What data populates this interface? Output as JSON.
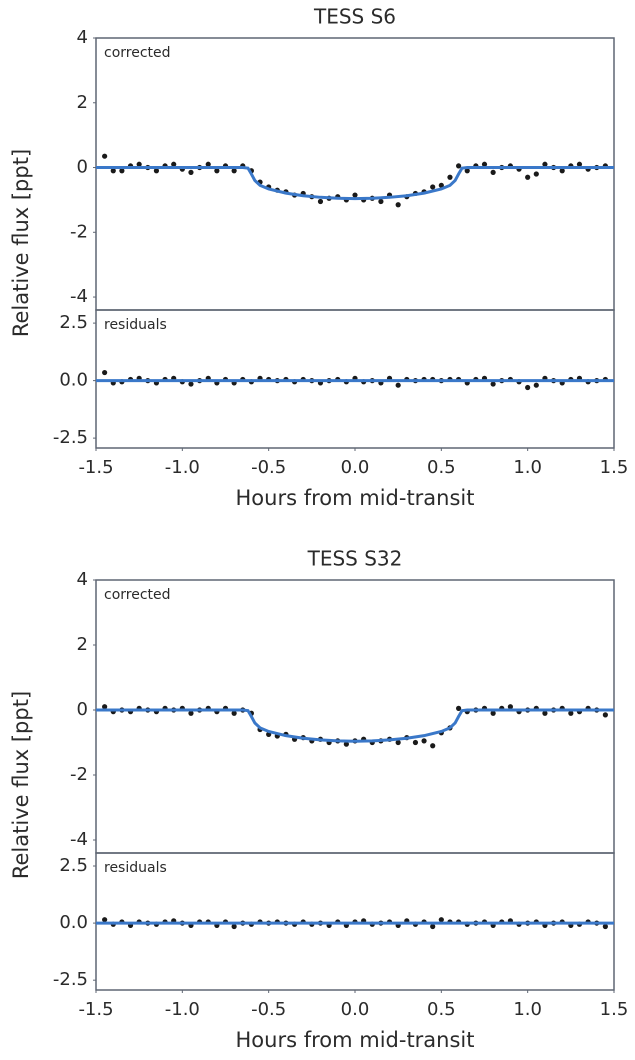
{
  "chart_data": [
    {
      "type": "line",
      "title": "TESS S6",
      "ylabel": "Relative flux [ppt]",
      "annotation": "corrected",
      "xlim": [
        -1.5,
        1.5
      ],
      "ylim": [
        -4.4,
        4.0
      ],
      "yticks": [
        4,
        2,
        0,
        -2,
        -4
      ],
      "series": [
        {
          "marker": "dot",
          "color": "#1a1a1a",
          "x": [
            -1.45,
            -1.4,
            -1.35,
            -1.3,
            -1.25,
            -1.2,
            -1.15,
            -1.1,
            -1.05,
            -1.0,
            -0.95,
            -0.9,
            -0.85,
            -0.8,
            -0.75,
            -0.7,
            -0.65,
            -0.6,
            -0.55,
            -0.5,
            -0.45,
            -0.4,
            -0.35,
            -0.3,
            -0.25,
            -0.2,
            -0.15,
            -0.1,
            -0.05,
            0,
            0.05,
            0.1,
            0.15,
            0.2,
            0.25,
            0.3,
            0.35,
            0.4,
            0.45,
            0.5,
            0.55,
            0.6,
            0.65,
            0.7,
            0.75,
            0.8,
            0.85,
            0.9,
            0.95,
            1.0,
            1.05,
            1.1,
            1.15,
            1.2,
            1.25,
            1.3,
            1.35,
            1.4,
            1.45
          ],
          "values": [
            0.35,
            -0.1,
            -0.1,
            0.05,
            0.1,
            0,
            -0.1,
            0.05,
            0.1,
            -0.05,
            -0.15,
            0,
            0.1,
            -0.1,
            0.05,
            -0.1,
            0.05,
            -0.1,
            -0.45,
            -0.6,
            -0.7,
            -0.75,
            -0.85,
            -0.8,
            -0.9,
            -1.05,
            -0.95,
            -0.9,
            -1.0,
            -0.85,
            -1.0,
            -0.95,
            -1.05,
            -0.85,
            -1.15,
            -0.9,
            -0.8,
            -0.75,
            -0.6,
            -0.55,
            -0.3,
            0.05,
            -0.1,
            0.05,
            0.1,
            -0.15,
            0,
            0.05,
            -0.05,
            -0.3,
            -0.2,
            0.1,
            0,
            -0.1,
            0.05,
            0.1,
            -0.05,
            0,
            0.05
          ]
        },
        {
          "marker": "line",
          "color": "#3a78c9",
          "x": [
            -1.5,
            -0.65,
            -0.62,
            -0.6,
            -0.58,
            -0.55,
            -0.5,
            -0.4,
            -0.3,
            -0.2,
            -0.1,
            0,
            0.1,
            0.2,
            0.3,
            0.4,
            0.5,
            0.55,
            0.58,
            0.6,
            0.62,
            0.65,
            1.5
          ],
          "values": [
            0,
            0,
            -0.02,
            -0.2,
            -0.4,
            -0.55,
            -0.66,
            -0.79,
            -0.87,
            -0.92,
            -0.95,
            -0.96,
            -0.95,
            -0.92,
            -0.87,
            -0.79,
            -0.66,
            -0.55,
            -0.4,
            -0.2,
            -0.02,
            0,
            0
          ]
        }
      ]
    },
    {
      "type": "line",
      "xlabel": "Hours from mid-transit",
      "annotation": "residuals",
      "xlim": [
        -1.5,
        1.5
      ],
      "xticks": [
        {
          "value": -1.5,
          "label": "-1.5"
        },
        {
          "value": -1,
          "label": "-1.0"
        },
        {
          "value": -0.5,
          "label": "-0.5"
        },
        {
          "value": 0,
          "label": "0.0"
        },
        {
          "value": 0.5,
          "label": "0.5"
        },
        {
          "value": 1,
          "label": "1.0"
        },
        {
          "value": 1.5,
          "label": "1.5"
        }
      ],
      "ylim": [
        -2.93,
        3.07
      ],
      "yticks": [
        2.5,
        {
          "value": 0,
          "label": "0.0"
        },
        -2.5
      ],
      "series": [
        {
          "marker": "dot",
          "color": "#1a1a1a",
          "x": [
            -1.45,
            -1.4,
            -1.35,
            -1.3,
            -1.25,
            -1.2,
            -1.15,
            -1.1,
            -1.05,
            -1.0,
            -0.95,
            -0.9,
            -0.85,
            -0.8,
            -0.75,
            -0.7,
            -0.65,
            -0.6,
            -0.55,
            -0.5,
            -0.45,
            -0.4,
            -0.35,
            -0.3,
            -0.25,
            -0.2,
            -0.15,
            -0.1,
            -0.05,
            0,
            0.05,
            0.1,
            0.15,
            0.2,
            0.25,
            0.3,
            0.35,
            0.4,
            0.45,
            0.5,
            0.55,
            0.6,
            0.65,
            0.7,
            0.75,
            0.8,
            0.85,
            0.9,
            0.95,
            1.0,
            1.05,
            1.1,
            1.15,
            1.2,
            1.25,
            1.3,
            1.35,
            1.4,
            1.45
          ],
          "values": [
            0.35,
            -0.1,
            -0.05,
            0.05,
            0.1,
            0,
            -0.1,
            0.05,
            0.1,
            -0.05,
            -0.15,
            0,
            0.1,
            -0.1,
            0.05,
            -0.1,
            0.05,
            -0.05,
            0.1,
            0.05,
            0,
            0.05,
            -0.05,
            0.05,
            0,
            -0.1,
            0,
            0.05,
            -0.05,
            0.1,
            -0.05,
            0,
            -0.1,
            0.1,
            -0.2,
            0.05,
            0,
            0.05,
            0.05,
            0,
            0.05,
            0.05,
            -0.1,
            0.05,
            0.1,
            -0.15,
            0,
            0.05,
            -0.05,
            -0.3,
            -0.2,
            0.1,
            0,
            -0.1,
            0.05,
            0.1,
            -0.05,
            0,
            0.05
          ]
        },
        {
          "marker": "line",
          "color": "#3a78c9",
          "x": [
            -1.5,
            1.5
          ],
          "values": [
            0,
            0
          ]
        }
      ]
    },
    {
      "type": "line",
      "title": "TESS S32",
      "ylabel": "Relative flux [ppt]",
      "annotation": "corrected",
      "xlim": [
        -1.5,
        1.5
      ],
      "ylim": [
        -4.4,
        4.0
      ],
      "yticks": [
        4,
        2,
        0,
        -2,
        -4
      ],
      "series": [
        {
          "marker": "dot",
          "color": "#1a1a1a",
          "x": [
            -1.45,
            -1.4,
            -1.35,
            -1.3,
            -1.25,
            -1.2,
            -1.15,
            -1.1,
            -1.05,
            -1.0,
            -0.95,
            -0.9,
            -0.85,
            -0.8,
            -0.75,
            -0.7,
            -0.65,
            -0.6,
            -0.55,
            -0.5,
            -0.45,
            -0.4,
            -0.35,
            -0.3,
            -0.25,
            -0.2,
            -0.15,
            -0.1,
            -0.05,
            0,
            0.05,
            0.1,
            0.15,
            0.2,
            0.25,
            0.3,
            0.35,
            0.4,
            0.45,
            0.5,
            0.55,
            0.6,
            0.65,
            0.7,
            0.75,
            0.8,
            0.85,
            0.9,
            0.95,
            1.0,
            1.05,
            1.1,
            1.15,
            1.2,
            1.25,
            1.3,
            1.35,
            1.4,
            1.45
          ],
          "values": [
            0.1,
            -0.05,
            0,
            -0.05,
            0.05,
            0,
            -0.05,
            0.05,
            0,
            0.05,
            -0.1,
            0,
            0.05,
            -0.05,
            0.05,
            -0.1,
            0,
            -0.1,
            -0.6,
            -0.75,
            -0.8,
            -0.75,
            -0.9,
            -0.85,
            -0.95,
            -0.9,
            -1.0,
            -0.95,
            -1.05,
            -0.95,
            -0.9,
            -1.0,
            -0.95,
            -0.9,
            -1.0,
            -0.85,
            -1.0,
            -0.95,
            -1.1,
            -0.7,
            -0.55,
            0.05,
            -0.05,
            0,
            0.05,
            -0.1,
            0.05,
            0.1,
            -0.05,
            0,
            0.05,
            -0.1,
            0,
            0.05,
            -0.1,
            -0.05,
            0.05,
            0,
            -0.15
          ]
        },
        {
          "marker": "line",
          "color": "#3a78c9",
          "x": [
            -1.5,
            -0.65,
            -0.62,
            -0.6,
            -0.58,
            -0.55,
            -0.5,
            -0.4,
            -0.3,
            -0.2,
            -0.1,
            0,
            0.1,
            0.2,
            0.3,
            0.4,
            0.5,
            0.55,
            0.58,
            0.6,
            0.62,
            0.65,
            1.5
          ],
          "values": [
            0,
            0,
            -0.02,
            -0.2,
            -0.4,
            -0.55,
            -0.66,
            -0.79,
            -0.87,
            -0.92,
            -0.95,
            -0.96,
            -0.95,
            -0.92,
            -0.87,
            -0.79,
            -0.66,
            -0.55,
            -0.4,
            -0.2,
            -0.02,
            0,
            0
          ]
        }
      ]
    },
    {
      "type": "line",
      "xlabel": "Hours from mid-transit",
      "annotation": "residuals",
      "xlim": [
        -1.5,
        1.5
      ],
      "xticks": [
        {
          "value": -1.5,
          "label": "-1.5"
        },
        {
          "value": -1,
          "label": "-1.0"
        },
        {
          "value": -0.5,
          "label": "-0.5"
        },
        {
          "value": 0,
          "label": "0.0"
        },
        {
          "value": 0.5,
          "label": "0.5"
        },
        {
          "value": 1,
          "label": "1.0"
        },
        {
          "value": 1.5,
          "label": "1.5"
        }
      ],
      "ylim": [
        -2.93,
        3.07
      ],
      "yticks": [
        2.5,
        {
          "value": 0,
          "label": "0.0"
        },
        -2.5
      ],
      "series": [
        {
          "marker": "dot",
          "color": "#1a1a1a",
          "x": [
            -1.45,
            -1.4,
            -1.35,
            -1.3,
            -1.25,
            -1.2,
            -1.15,
            -1.1,
            -1.05,
            -1.0,
            -0.95,
            -0.9,
            -0.85,
            -0.8,
            -0.75,
            -0.7,
            -0.65,
            -0.6,
            -0.55,
            -0.5,
            -0.45,
            -0.4,
            -0.35,
            -0.3,
            -0.25,
            -0.2,
            -0.15,
            -0.1,
            -0.05,
            0,
            0.05,
            0.1,
            0.15,
            0.2,
            0.25,
            0.3,
            0.35,
            0.4,
            0.45,
            0.5,
            0.55,
            0.6,
            0.65,
            0.7,
            0.75,
            0.8,
            0.85,
            0.9,
            0.95,
            1.0,
            1.05,
            1.1,
            1.15,
            1.2,
            1.25,
            1.3,
            1.35,
            1.4,
            1.45
          ],
          "values": [
            0.15,
            -0.05,
            0.05,
            -0.1,
            0.05,
            0,
            -0.05,
            0.05,
            0.1,
            0,
            -0.1,
            0.05,
            0.05,
            -0.1,
            0.05,
            -0.15,
            0,
            -0.05,
            0.05,
            0,
            0.05,
            0,
            -0.05,
            0.05,
            -0.05,
            0,
            -0.1,
            0.05,
            -0.1,
            0.05,
            0.1,
            -0.05,
            0,
            0.05,
            -0.1,
            0.1,
            -0.05,
            0.05,
            -0.15,
            0.15,
            0.05,
            0.05,
            -0.05,
            0,
            0.05,
            -0.1,
            0.05,
            0.1,
            -0.05,
            0,
            0.05,
            -0.1,
            0,
            0.05,
            -0.1,
            -0.05,
            0.05,
            0,
            -0.15
          ]
        },
        {
          "marker": "line",
          "color": "#3a78c9",
          "x": [
            -1.5,
            1.5
          ],
          "values": [
            0,
            0
          ]
        }
      ]
    }
  ]
}
